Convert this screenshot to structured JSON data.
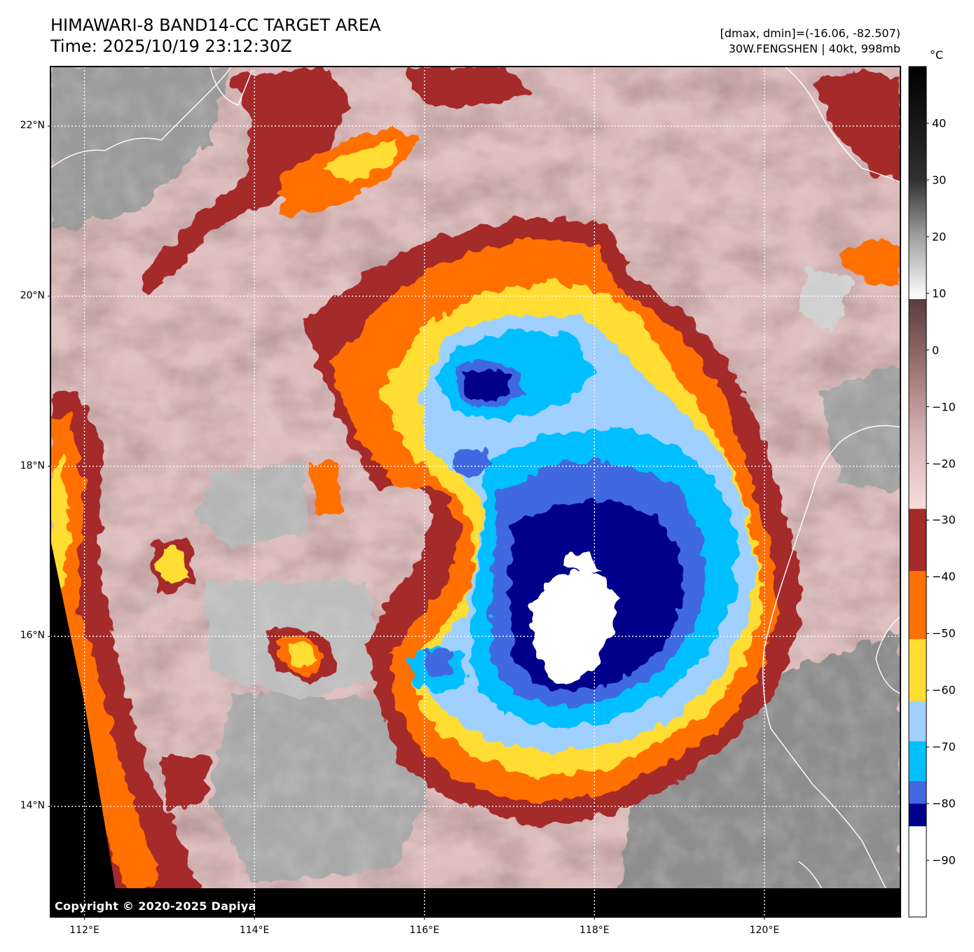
{
  "header": {
    "title_line1": "HIMAWARI-8 BAND14-CC TARGET AREA",
    "title_line2": "Time: 2025/10/19 23:12:30Z",
    "info_line1": "[dmax, dmin]=(-16.06, -82.507)",
    "info_line2": "30W.FENGSHEN | 40kt, 998mb"
  },
  "copyright": "Copyright © 2020-2025 Dapiya",
  "map": {
    "lat_labels": [
      {
        "value": 22,
        "label": "22°N"
      },
      {
        "value": 20,
        "label": "20°N"
      },
      {
        "value": 18,
        "label": "18°N"
      },
      {
        "value": 16,
        "label": "16°N"
      },
      {
        "value": 14,
        "label": "14°N"
      }
    ],
    "lon_labels": [
      {
        "value": 112,
        "label": "112°E"
      },
      {
        "value": 114,
        "label": "114°E"
      },
      {
        "value": 116,
        "label": "116°E"
      },
      {
        "value": 118,
        "label": "118°E"
      },
      {
        "value": 120,
        "label": "120°E"
      }
    ],
    "extent": {
      "lon_min": 111.6,
      "lon_max": 121.6,
      "lat_min": 12.7,
      "lat_max": 22.7
    },
    "storm_center": {
      "lon": 117.9,
      "lat": 16.2
    },
    "secondary_cell": {
      "lon": 116.8,
      "lat": 19.1
    }
  },
  "colorbar": {
    "unit": "°C",
    "range": [
      -100,
      50
    ],
    "ticks": [
      {
        "value": 40,
        "label": "40"
      },
      {
        "value": 30,
        "label": "30"
      },
      {
        "value": 20,
        "label": "20"
      },
      {
        "value": 10,
        "label": "10"
      },
      {
        "value": 0,
        "label": "0"
      },
      {
        "value": -10,
        "label": "−10"
      },
      {
        "value": -20,
        "label": "−20"
      },
      {
        "value": -30,
        "label": "−30"
      },
      {
        "value": -40,
        "label": "−40"
      },
      {
        "value": -50,
        "label": "−50"
      },
      {
        "value": -60,
        "label": "−60"
      },
      {
        "value": -70,
        "label": "−70"
      },
      {
        "value": -80,
        "label": "−80"
      },
      {
        "value": -90,
        "label": "−90"
      }
    ],
    "bands": [
      {
        "from": -100,
        "to": -84,
        "color": "#ffffff"
      },
      {
        "from": -84,
        "to": -80,
        "color": "#00008b"
      },
      {
        "from": -80,
        "to": -76,
        "color": "#4169e1"
      },
      {
        "from": -76,
        "to": -69,
        "color": "#00bfff"
      },
      {
        "from": -69,
        "to": -62,
        "color": "#a0d0ff"
      },
      {
        "from": -62,
        "to": -51,
        "color": "#ffdd33"
      },
      {
        "from": -51,
        "to": -39,
        "color": "#ff7000"
      },
      {
        "from": -39,
        "to": -28,
        "color": "#a52a2a"
      }
    ],
    "warm_gradient": [
      {
        "at": -28,
        "color": "#f7dcdc"
      },
      {
        "at": -15,
        "color": "#d7b2b2"
      },
      {
        "at": 0,
        "color": "#8d6363"
      },
      {
        "at": 9,
        "color": "#5a3c3c"
      }
    ],
    "gray_gradient": [
      {
        "at": 9,
        "color": "#ffffff"
      },
      {
        "at": 20,
        "color": "#a0a0a0"
      },
      {
        "at": 30,
        "color": "#303030"
      },
      {
        "at": 50,
        "color": "#000000"
      }
    ]
  }
}
